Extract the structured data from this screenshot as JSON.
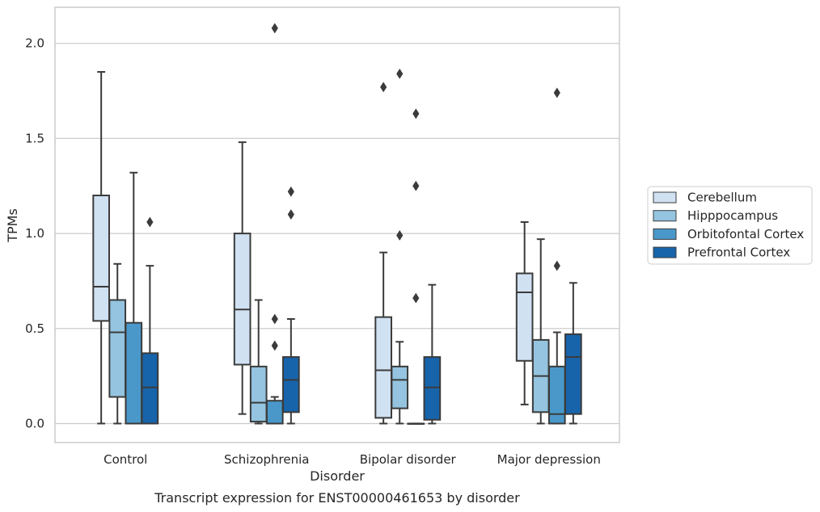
{
  "chart_data": {
    "type": "box",
    "title": "",
    "caption": "Transcript expression for ENST00000461653 by disorder",
    "xlabel": "Disorder",
    "ylabel": "TPMs",
    "ylim": [
      -0.1,
      2.19
    ],
    "yticks": [
      0.0,
      0.5,
      1.0,
      1.5,
      2.0
    ],
    "ytick_labels": [
      "0.0",
      "0.5",
      "1.0",
      "1.5",
      "2.0"
    ],
    "grid": "horizontal",
    "legend_position": "right",
    "categories": [
      "Control",
      "Schizophrenia",
      "Bipolar disorder",
      "Major depression"
    ],
    "series": [
      {
        "name": "Cerebellum",
        "color": "#d0e1f2",
        "boxes": [
          {
            "whisker_low": 0.0,
            "q1": 0.54,
            "median": 0.72,
            "q3": 1.2,
            "whisker_high": 1.85,
            "outliers": []
          },
          {
            "whisker_low": 0.05,
            "q1": 0.31,
            "median": 0.6,
            "q3": 1.0,
            "whisker_high": 1.48,
            "outliers": []
          },
          {
            "whisker_low": 0.0,
            "q1": 0.03,
            "median": 0.28,
            "q3": 0.56,
            "whisker_high": 0.9,
            "outliers": [
              1.77
            ]
          },
          {
            "whisker_low": 0.1,
            "q1": 0.33,
            "median": 0.69,
            "q3": 0.79,
            "whisker_high": 1.06,
            "outliers": []
          }
        ]
      },
      {
        "name": "Hipppocampus",
        "color": "#94c4df",
        "boxes": [
          {
            "whisker_low": 0.0,
            "q1": 0.14,
            "median": 0.48,
            "q3": 0.65,
            "whisker_high": 0.84,
            "outliers": []
          },
          {
            "whisker_low": 0.0,
            "q1": 0.01,
            "median": 0.11,
            "q3": 0.3,
            "whisker_high": 0.65,
            "outliers": []
          },
          {
            "whisker_low": 0.0,
            "q1": 0.08,
            "median": 0.23,
            "q3": 0.3,
            "whisker_high": 0.43,
            "outliers": [
              0.99,
              1.84
            ]
          },
          {
            "whisker_low": 0.0,
            "q1": 0.06,
            "median": 0.25,
            "q3": 0.44,
            "whisker_high": 0.97,
            "outliers": []
          }
        ]
      },
      {
        "name": "Orbitofontal Cortex",
        "color": "#4a98c9",
        "boxes": [
          {
            "whisker_low": 0.0,
            "q1": 0.0,
            "median": 0.0,
            "q3": 0.53,
            "whisker_high": 1.32,
            "outliers": []
          },
          {
            "whisker_low": 0.0,
            "q1": 0.0,
            "median": 0.0,
            "q3": 0.12,
            "whisker_high": 0.14,
            "outliers": [
              0.41,
              0.55,
              2.08
            ]
          },
          {
            "whisker_low": 0.0,
            "q1": 0.0,
            "median": 0.0,
            "q3": 0.0,
            "whisker_high": 0.0,
            "outliers": [
              0.66,
              1.25,
              1.63
            ]
          },
          {
            "whisker_low": 0.0,
            "q1": 0.0,
            "median": 0.05,
            "q3": 0.3,
            "whisker_high": 0.48,
            "outliers": [
              0.83,
              1.74
            ]
          }
        ]
      },
      {
        "name": "Prefrontal Cortex",
        "color": "#1764ab",
        "boxes": [
          {
            "whisker_low": 0.0,
            "q1": 0.0,
            "median": 0.19,
            "q3": 0.37,
            "whisker_high": 0.83,
            "outliers": [
              1.06
            ]
          },
          {
            "whisker_low": 0.0,
            "q1": 0.06,
            "median": 0.23,
            "q3": 0.35,
            "whisker_high": 0.55,
            "outliers": [
              1.1,
              1.22
            ]
          },
          {
            "whisker_low": 0.0,
            "q1": 0.02,
            "median": 0.19,
            "q3": 0.35,
            "whisker_high": 0.73,
            "outliers": []
          },
          {
            "whisker_low": 0.0,
            "q1": 0.05,
            "median": 0.35,
            "q3": 0.47,
            "whisker_high": 0.74,
            "outliers": []
          }
        ]
      }
    ]
  }
}
